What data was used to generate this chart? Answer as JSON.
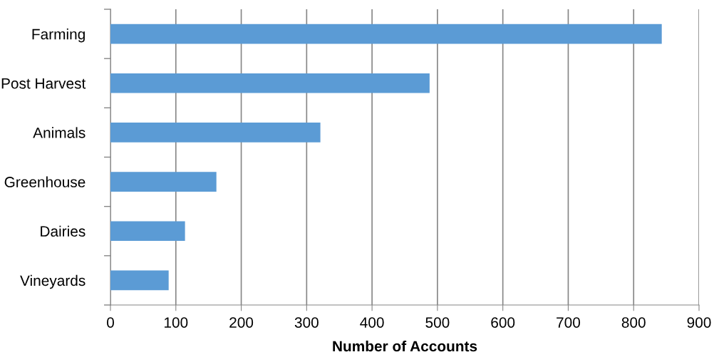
{
  "chart_data": {
    "type": "bar",
    "orientation": "horizontal",
    "categories": [
      "Farming",
      "Post Harvest",
      "Animals",
      "Greenhouse",
      "Dairies",
      "Vineyards"
    ],
    "values": [
      843,
      488,
      321,
      162,
      114,
      89
    ],
    "color": "#5b9bd5",
    "xlabel": "Number of Accounts",
    "xlim": [
      0,
      900
    ],
    "xticks": [
      0,
      100,
      200,
      300,
      400,
      500,
      600,
      700,
      800,
      900
    ],
    "grid": "x",
    "legend": false
  }
}
